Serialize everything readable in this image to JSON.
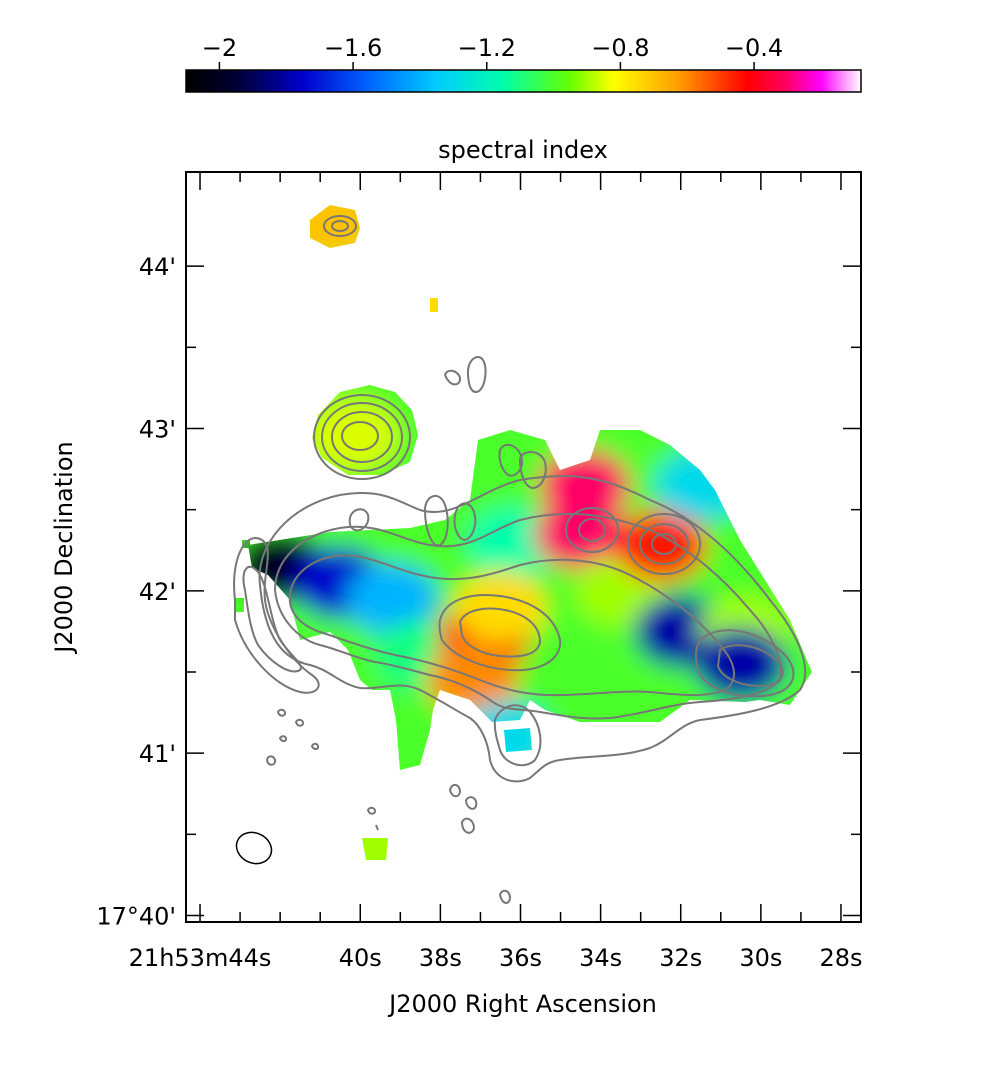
{
  "chart_data": {
    "type": "heatmap",
    "title": "spectral index",
    "xlabel": "J2000 Right Ascension",
    "ylabel": "J2000 Declination",
    "colorbar": {
      "min": -2.1,
      "max": -0.08,
      "ticks": [
        {
          "value": -2.0,
          "label": "−2"
        },
        {
          "value": -1.6,
          "label": "−1.6"
        },
        {
          "value": -1.2,
          "label": "−1.2"
        },
        {
          "value": -0.8,
          "label": "−0.8"
        },
        {
          "value": -0.4,
          "label": "−0.4"
        }
      ],
      "colormap": [
        {
          "v": -2.1,
          "color": "#000000"
        },
        {
          "v": -1.95,
          "color": "#000033"
        },
        {
          "v": -1.75,
          "color": "#0000cc"
        },
        {
          "v": -1.55,
          "color": "#0066ff"
        },
        {
          "v": -1.35,
          "color": "#00ccff"
        },
        {
          "v": -1.15,
          "color": "#00ffaa"
        },
        {
          "v": -0.95,
          "color": "#66ff00"
        },
        {
          "v": -0.82,
          "color": "#ffff00"
        },
        {
          "v": -0.62,
          "color": "#ff9900"
        },
        {
          "v": -0.42,
          "color": "#ff0000"
        },
        {
          "v": -0.3,
          "color": "#ff0066"
        },
        {
          "v": -0.2,
          "color": "#ff00ff"
        },
        {
          "v": -0.08,
          "color": "#ffffff"
        }
      ]
    },
    "x_axis": {
      "unit": "seconds of RA (21h53m)",
      "range": [
        44.35,
        27.5
      ],
      "ticks": [
        {
          "value": 44,
          "label": "21h53m44s"
        },
        {
          "value": 40,
          "label": "40s"
        },
        {
          "value": 38,
          "label": "38s"
        },
        {
          "value": 36,
          "label": "36s"
        },
        {
          "value": 34,
          "label": "34s"
        },
        {
          "value": 32,
          "label": "32s"
        },
        {
          "value": 30,
          "label": "30s"
        },
        {
          "value": 28,
          "label": "28s"
        }
      ],
      "minor_ticks": [
        43,
        42,
        41,
        39,
        37,
        35,
        33,
        31,
        29
      ]
    },
    "y_axis": {
      "unit": "arcmin above +17°40'",
      "range": [
        -0.04,
        4.58
      ],
      "ticks": [
        {
          "value": 0,
          "label": "17°40'"
        },
        {
          "value": 1,
          "label": "41'"
        },
        {
          "value": 2,
          "label": "42'"
        },
        {
          "value": 3,
          "label": "43'"
        },
        {
          "value": 4,
          "label": "44'"
        }
      ],
      "minor_ticks": [
        0.5,
        1.5,
        2.5,
        3.5
      ]
    },
    "grid": false,
    "contours": "gray total-intensity contours overlaid",
    "beam": "ellipse, lower-left corner",
    "regions": [
      {
        "ra": 40.7,
        "dec": 4.26,
        "spectral_index": -0.7
      },
      {
        "ra": 38.2,
        "dec": 3.77,
        "spectral_index": -0.75
      },
      {
        "ra": 40.2,
        "dec": 2.96,
        "spectral_index": -0.85
      },
      {
        "ra": 42.0,
        "dec": 2.15,
        "spectral_index": -2.0
      },
      {
        "ra": 40.5,
        "dec": 2.05,
        "spectral_index": -1.75
      },
      {
        "ra": 39.2,
        "dec": 1.95,
        "spectral_index": -1.4
      },
      {
        "ra": 38.5,
        "dec": 1.6,
        "spectral_index": -1.1
      },
      {
        "ra": 36.9,
        "dec": 1.72,
        "spectral_index": -0.45
      },
      {
        "ra": 37.2,
        "dec": 1.45,
        "spectral_index": -0.6
      },
      {
        "ra": 36.2,
        "dec": 2.3,
        "spectral_index": -1.15
      },
      {
        "ra": 36.5,
        "dec": 1.9,
        "spectral_index": -0.75
      },
      {
        "ra": 34.4,
        "dec": 2.65,
        "spectral_index": -0.3
      },
      {
        "ra": 34.5,
        "dec": 2.35,
        "spectral_index": -0.3
      },
      {
        "ra": 33.5,
        "dec": 2.0,
        "spectral_index": -0.9
      },
      {
        "ra": 32.5,
        "dec": 2.28,
        "spectral_index": -0.45
      },
      {
        "ra": 32.0,
        "dec": 1.75,
        "spectral_index": -1.8
      },
      {
        "ra": 30.4,
        "dec": 1.75,
        "spectral_index": -0.9
      },
      {
        "ra": 30.5,
        "dec": 1.55,
        "spectral_index": -1.8
      },
      {
        "ra": 31.5,
        "dec": 2.65,
        "spectral_index": -1.3
      },
      {
        "ra": 36.4,
        "dec": 1.1,
        "spectral_index": -1.3
      },
      {
        "ra": 39.8,
        "dec": 0.45,
        "spectral_index": -0.9
      }
    ]
  }
}
